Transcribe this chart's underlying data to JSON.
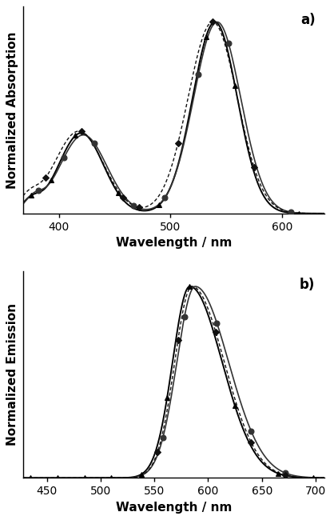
{
  "panel_a": {
    "xlabel": "Wavelength / nm",
    "ylabel": "Normalized Absorption",
    "label": "a)",
    "xlim": [
      368,
      638
    ],
    "ylim": [
      0,
      1.08
    ],
    "xticks": [
      400,
      500,
      600
    ],
    "tick_fontsize": 10,
    "label_fontsize": 11
  },
  "panel_b": {
    "xlabel": "Wavelength / nm",
    "ylabel": "Normalized Emission",
    "label": "b)",
    "xlim": [
      428,
      708
    ],
    "ylim": [
      0,
      1.08
    ],
    "xticks": [
      450,
      500,
      550,
      600,
      650,
      700
    ],
    "tick_fontsize": 10,
    "label_fontsize": 11
  },
  "background_color": "#ffffff"
}
